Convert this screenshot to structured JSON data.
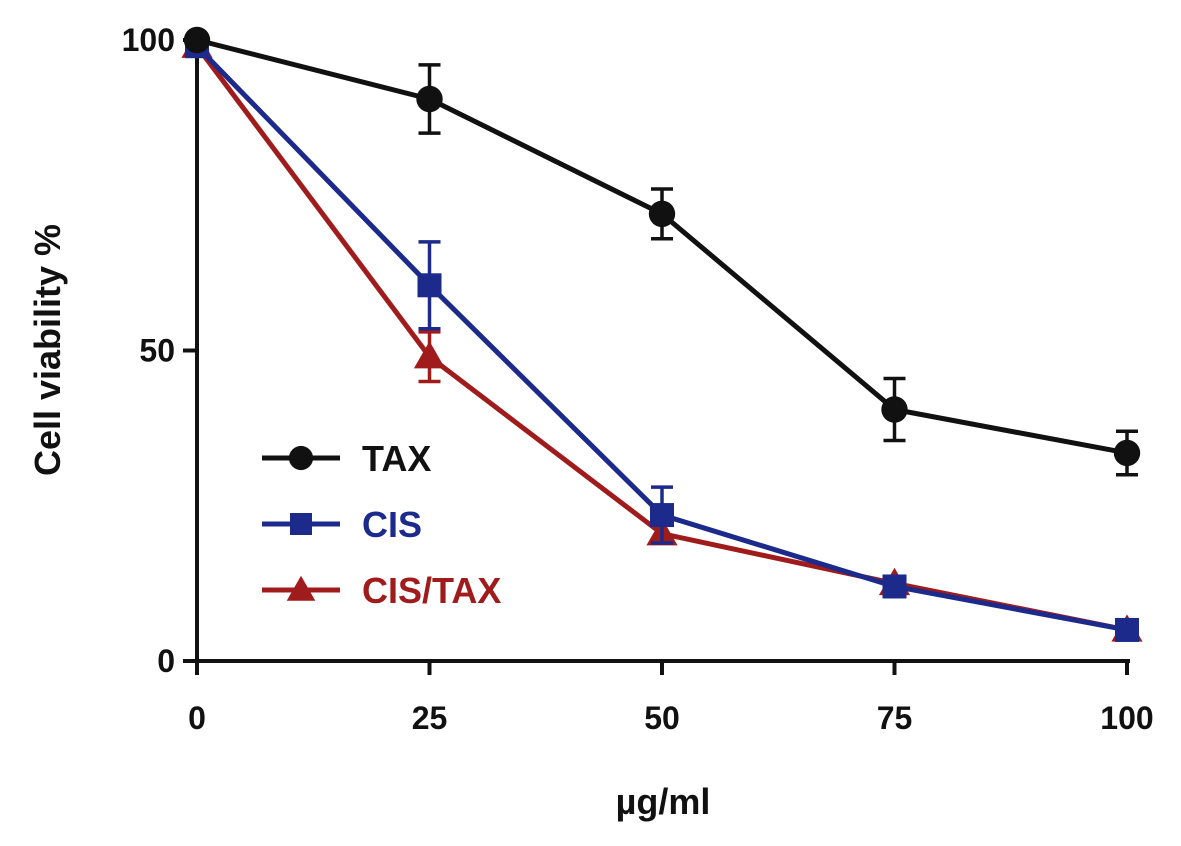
{
  "chart_data": {
    "type": "line",
    "title": "",
    "xlabel": "µg/ml",
    "ylabel": "Cell viability %",
    "xlim": [
      0,
      100
    ],
    "ylim": [
      0,
      100
    ],
    "x_ticks": [
      "0",
      "25",
      "50",
      "75",
      "100"
    ],
    "y_ticks": [
      "0",
      "50",
      "100"
    ],
    "x": [
      0,
      25,
      50,
      75,
      100
    ],
    "grid": false,
    "legend_position": "bottom-left",
    "series": [
      {
        "name": "TAX",
        "color": "#111111",
        "marker": "circle",
        "values": [
          100,
          90.5,
          72,
          40.5,
          33.5
        ],
        "errors": [
          0,
          5.5,
          4,
          5,
          3.5
        ]
      },
      {
        "name": "CIS",
        "color": "#1c2a8c",
        "marker": "square",
        "values": [
          99,
          60.5,
          23.5,
          12,
          5
        ],
        "errors": [
          0,
          7,
          4.5,
          1.5,
          1
        ]
      },
      {
        "name": "CIS/TAX",
        "color": "#a01c1c",
        "marker": "triangle",
        "values": [
          99,
          49,
          20.5,
          12.5,
          5
        ],
        "errors": [
          0,
          4,
          1.5,
          1,
          1
        ]
      }
    ]
  }
}
